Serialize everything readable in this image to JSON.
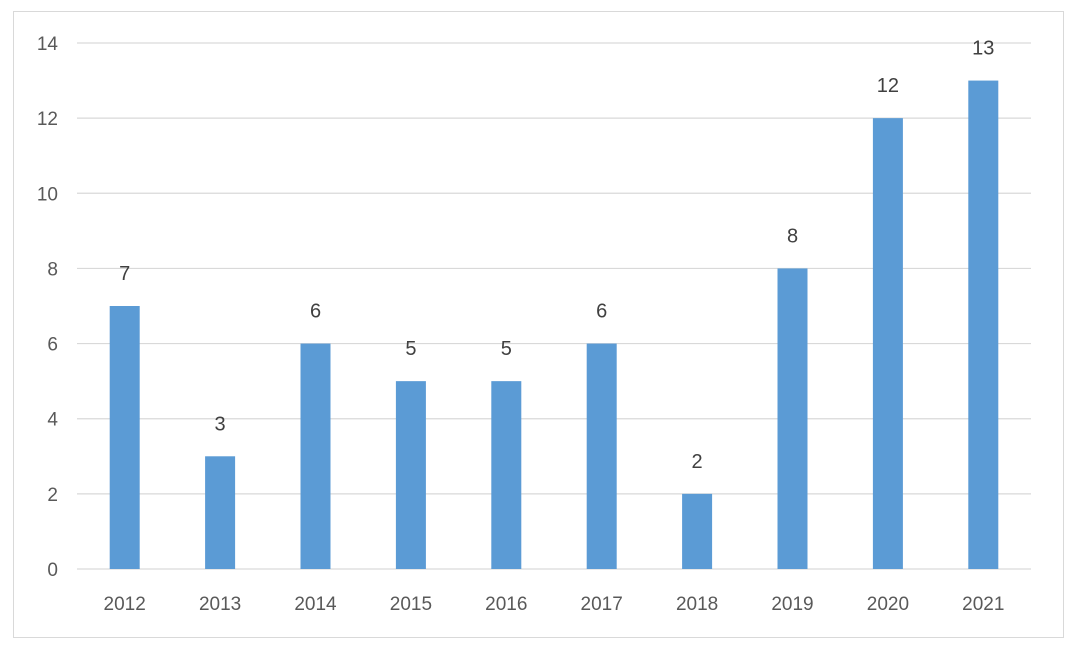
{
  "chart_data": {
    "type": "bar",
    "title": "",
    "xlabel": "",
    "ylabel": "",
    "categories": [
      "2012",
      "2013",
      "2014",
      "2015",
      "2016",
      "2017",
      "2018",
      "2019",
      "2020",
      "2021"
    ],
    "values": [
      7,
      3,
      6,
      5,
      5,
      6,
      2,
      8,
      12,
      13
    ],
    "data_labels": [
      "7",
      "3",
      "6",
      "5",
      "5",
      "6",
      "2",
      "8",
      "12",
      "13"
    ],
    "ylim": [
      0,
      14
    ],
    "y_ticks": [
      "0",
      "2",
      "4",
      "6",
      "8",
      "10",
      "12",
      "14"
    ],
    "grid": true,
    "legend": "none",
    "bar_color": "#5b9bd5",
    "grid_color": "#d9d9d9"
  }
}
